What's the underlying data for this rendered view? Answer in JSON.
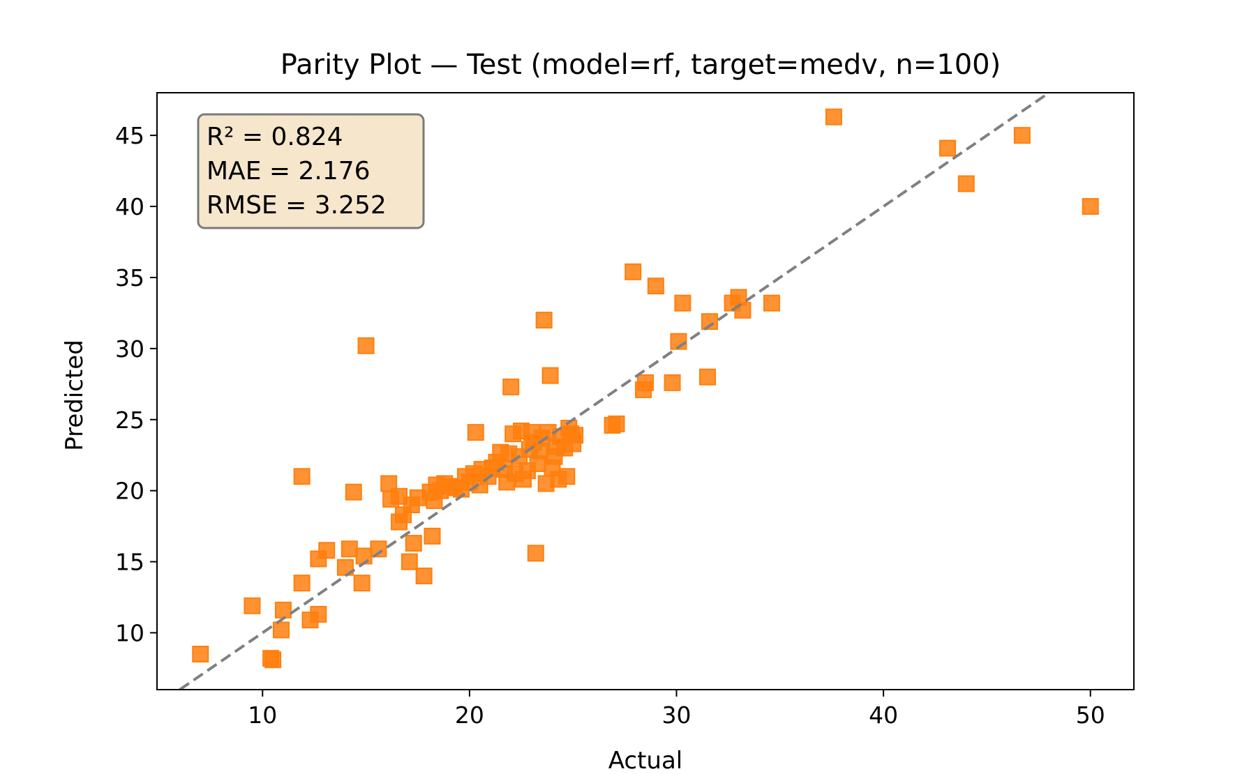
{
  "chart_data": {
    "type": "scatter",
    "title": "Parity Plot — Test (model=rf, target=medv, n=100)",
    "xlabel": "Actual",
    "ylabel": "Predicted",
    "xlim": [
      4.9,
      52.1
    ],
    "ylim": [
      6.0,
      48.0
    ],
    "xticks": [
      10,
      20,
      30,
      40,
      50
    ],
    "yticks": [
      10,
      15,
      20,
      25,
      30,
      35,
      40,
      45
    ],
    "grid": false,
    "legend": "none",
    "stats_box": {
      "lines": [
        "R² = 0.824",
        "MAE = 2.176",
        "RMSE = 3.252"
      ],
      "placement": "top-left",
      "fill": "#f5e6cc",
      "edge": "#7a7a7a"
    },
    "reference_line": {
      "style": "dashed",
      "color": "#808080",
      "description": "y = x"
    },
    "marker": {
      "shape": "square",
      "color": "#ff7f0e"
    },
    "points": [
      [
        7.0,
        8.5
      ],
      [
        9.5,
        11.9
      ],
      [
        10.4,
        8.2
      ],
      [
        10.5,
        8.1
      ],
      [
        10.9,
        10.2
      ],
      [
        11.0,
        11.6
      ],
      [
        11.9,
        21.0
      ],
      [
        11.9,
        13.5
      ],
      [
        12.3,
        10.9
      ],
      [
        12.7,
        11.3
      ],
      [
        12.7,
        15.2
      ],
      [
        13.1,
        15.8
      ],
      [
        14.0,
        14.6
      ],
      [
        14.2,
        15.9
      ],
      [
        14.4,
        19.9
      ],
      [
        14.8,
        13.5
      ],
      [
        14.9,
        15.4
      ],
      [
        15.0,
        30.2
      ],
      [
        15.6,
        15.9
      ],
      [
        16.1,
        20.5
      ],
      [
        16.2,
        19.4
      ],
      [
        16.6,
        19.6
      ],
      [
        16.6,
        17.8
      ],
      [
        16.8,
        18.3
      ],
      [
        17.1,
        15.0
      ],
      [
        17.2,
        19.0
      ],
      [
        17.3,
        16.3
      ],
      [
        17.5,
        19.5
      ],
      [
        17.8,
        14.0
      ],
      [
        18.1,
        19.9
      ],
      [
        18.2,
        16.8
      ],
      [
        18.3,
        19.3
      ],
      [
        18.4,
        20.4
      ],
      [
        18.6,
        20.0
      ],
      [
        18.8,
        20.5
      ],
      [
        19.0,
        20.3
      ],
      [
        19.3,
        20.2
      ],
      [
        19.6,
        20.1
      ],
      [
        19.8,
        21.0
      ],
      [
        20.0,
        20.6
      ],
      [
        20.2,
        21.2
      ],
      [
        20.3,
        24.1
      ],
      [
        20.5,
        20.4
      ],
      [
        20.6,
        21.5
      ],
      [
        20.9,
        21.0
      ],
      [
        21.1,
        21.6
      ],
      [
        21.3,
        22.0
      ],
      [
        21.5,
        22.7
      ],
      [
        21.7,
        21.5
      ],
      [
        21.8,
        20.6
      ],
      [
        21.9,
        22.6
      ],
      [
        22.0,
        27.3
      ],
      [
        22.1,
        24.0
      ],
      [
        22.2,
        21.2
      ],
      [
        22.4,
        22.4
      ],
      [
        22.5,
        24.2
      ],
      [
        22.6,
        20.8
      ],
      [
        22.8,
        21.4
      ],
      [
        22.9,
        22.9
      ],
      [
        23.0,
        24.1
      ],
      [
        23.1,
        23.4
      ],
      [
        23.2,
        15.6
      ],
      [
        23.3,
        21.9
      ],
      [
        23.4,
        22.8
      ],
      [
        23.5,
        23.7
      ],
      [
        23.6,
        32.0
      ],
      [
        23.7,
        20.5
      ],
      [
        23.8,
        24.1
      ],
      [
        23.9,
        28.1
      ],
      [
        24.0,
        21.6
      ],
      [
        24.1,
        22.4
      ],
      [
        24.2,
        23.1
      ],
      [
        24.3,
        20.8
      ],
      [
        24.4,
        23.8
      ],
      [
        24.6,
        23.0
      ],
      [
        24.7,
        21.0
      ],
      [
        24.8,
        24.4
      ],
      [
        25.0,
        23.3
      ],
      [
        25.1,
        23.9
      ],
      [
        26.9,
        24.6
      ],
      [
        27.1,
        24.7
      ],
      [
        27.9,
        35.4
      ],
      [
        28.4,
        27.1
      ],
      [
        28.5,
        27.6
      ],
      [
        29.0,
        34.4
      ],
      [
        29.8,
        27.6
      ],
      [
        30.1,
        30.5
      ],
      [
        30.3,
        33.2
      ],
      [
        31.5,
        28.0
      ],
      [
        31.6,
        31.9
      ],
      [
        32.7,
        33.2
      ],
      [
        33.0,
        33.6
      ],
      [
        33.2,
        32.7
      ],
      [
        34.6,
        33.2
      ],
      [
        37.6,
        46.3
      ],
      [
        43.1,
        44.1
      ],
      [
        44.0,
        41.6
      ],
      [
        46.7,
        45.0
      ],
      [
        50.0,
        40.0
      ],
      [
        24.9,
        24.0
      ]
    ]
  }
}
